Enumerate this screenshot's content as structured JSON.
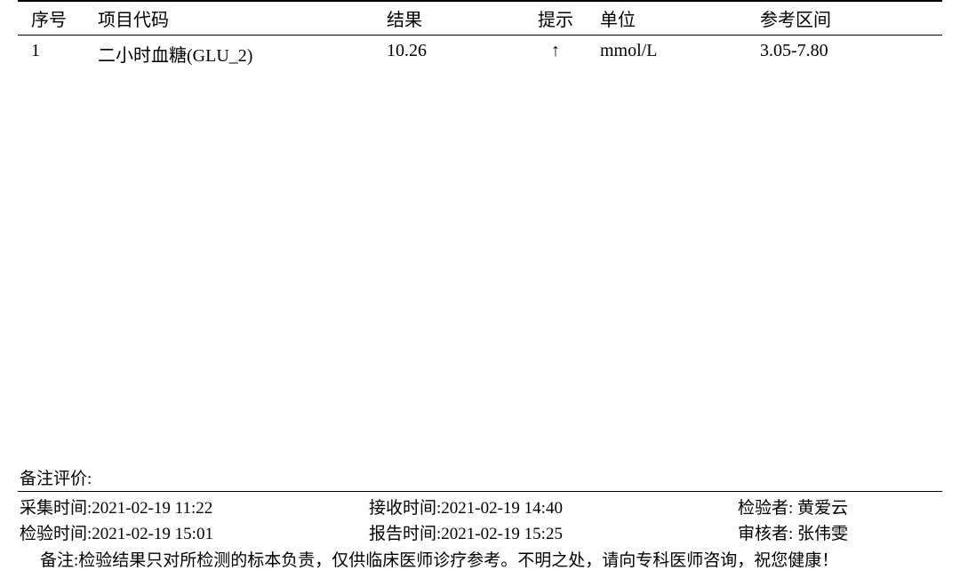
{
  "table": {
    "columns": {
      "seq": "序号",
      "code": "项目代码",
      "result": "结果",
      "flag": "提示",
      "unit": "单位",
      "range": "参考区间"
    },
    "rows": [
      {
        "seq": "1",
        "code": "二小时血糖(GLU_2)",
        "result": "10.26",
        "flag": "↑",
        "unit": "mmol/L",
        "range": "3.05-7.80"
      }
    ]
  },
  "footer": {
    "remarks_label": "备注评价:",
    "collection_time_label": "采集时间:",
    "collection_time": "2021-02-19 11:22",
    "receive_time_label": "接收时间:",
    "receive_time": "2021-02-19 14:40",
    "inspector_label": "检验者:",
    "inspector": "黄爱云",
    "test_time_label": "检验时间:",
    "test_time": "2021-02-19 15:01",
    "report_time_label": "报告时间:",
    "report_time": "2021-02-19 15:25",
    "reviewer_label": "审核者:",
    "reviewer": "张伟雯",
    "note_label": "备注:",
    "note_text": "检验结果只对所检测的标本负责，仅供临床医师诊疗参考。不明之处，请向专科医师咨询，祝您健康！"
  },
  "styling": {
    "background_color": "#ffffff",
    "text_color": "#000000",
    "border_color": "#000000",
    "font_family": "SimSun",
    "header_fontsize": 20,
    "body_fontsize": 20,
    "footer_fontsize": 19
  }
}
